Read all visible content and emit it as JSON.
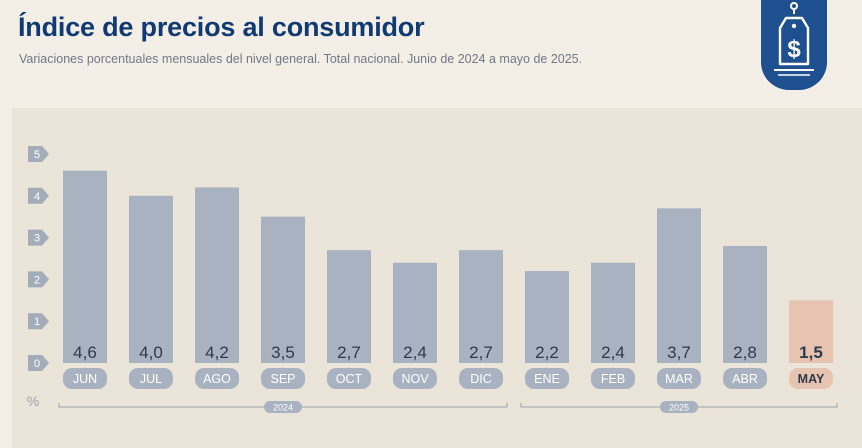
{
  "header": {
    "title": "Índice de precios al consumidor",
    "subtitle": "Variaciones porcentuales mensuales del nivel general. Total nacional. Junio de 2024 a mayo de 2025."
  },
  "badge": {
    "icon": "price-tag-dollar-icon",
    "color": "#1e4f8f"
  },
  "chart_data": {
    "type": "bar",
    "categories": [
      "JUN",
      "JUL",
      "AGO",
      "SEP",
      "OCT",
      "NOV",
      "DIC",
      "ENE",
      "FEB",
      "MAR",
      "ABR",
      "MAY"
    ],
    "values": [
      4.6,
      4.0,
      4.2,
      3.5,
      2.7,
      2.4,
      2.7,
      2.2,
      2.4,
      3.7,
      2.8,
      1.5
    ],
    "value_labels": [
      "4,6",
      "4,0",
      "4,2",
      "3,5",
      "2,7",
      "2,4",
      "2,7",
      "2,2",
      "2,4",
      "3,7",
      "2,8",
      "1,5"
    ],
    "highlight_index": 11,
    "yticks": [
      "0",
      "1",
      "2",
      "3",
      "4",
      "5"
    ],
    "ylim": [
      0,
      5
    ],
    "yunit": "%",
    "year_groups": [
      {
        "label": "2024",
        "from": 0,
        "to": 6
      },
      {
        "label": "2025",
        "from": 7,
        "to": 11
      }
    ],
    "colors": {
      "bar": "#a8b2c1",
      "bar_highlight": "#e6c4b1",
      "label_pill": "#a8b2c1",
      "label_pill_highlight": "#e6c4b1",
      "text": "#2f3a4a",
      "tick_marker": "#a3acb9",
      "grid": "#cfc9bd"
    }
  }
}
